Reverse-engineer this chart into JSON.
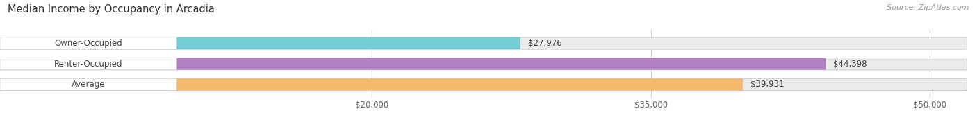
{
  "title": "Median Income by Occupancy in Arcadia",
  "source": "Source: ZipAtlas.com",
  "categories": [
    "Owner-Occupied",
    "Renter-Occupied",
    "Average"
  ],
  "values": [
    27976,
    44398,
    39931
  ],
  "bar_colors": [
    "#72cdd4",
    "#b07fc4",
    "#f5b96e"
  ],
  "bar_bg_color": "#ebebeb",
  "value_labels": [
    "$27,976",
    "$44,398",
    "$39,931"
  ],
  "xticks": [
    20000,
    35000,
    50000
  ],
  "xtick_labels": [
    "$20,000",
    "$35,000",
    "$50,000"
  ],
  "xmin": 0,
  "xmax": 52000,
  "title_fontsize": 10.5,
  "label_fontsize": 8.5,
  "value_fontsize": 8.5,
  "tick_fontsize": 8.5,
  "source_fontsize": 8,
  "bar_height": 0.58,
  "background_color": "#ffffff",
  "pill_label_color": "#444444",
  "value_label_color": "#444444",
  "grid_color": "#d0d0d0"
}
